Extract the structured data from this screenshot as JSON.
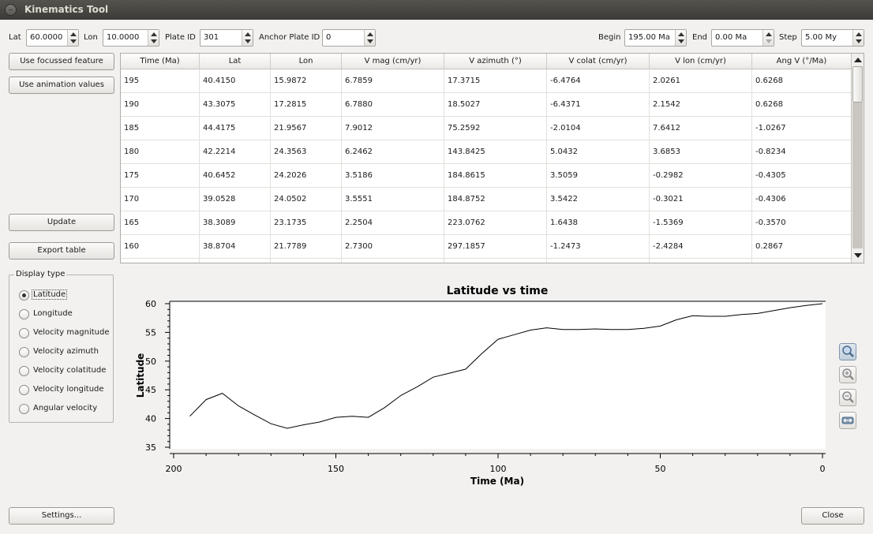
{
  "window": {
    "title": "Kinematics Tool"
  },
  "params": {
    "lat_label": "Lat",
    "lat_value": "60.0000",
    "lon_label": "Lon",
    "lon_value": "10.0000",
    "plate_label": "Plate ID",
    "plate_value": "301",
    "anchor_label": "Anchor Plate ID",
    "anchor_value": "0",
    "begin_label": "Begin",
    "begin_value": "195.00 Ma",
    "end_label": "End",
    "end_value": "0.00 Ma",
    "step_label": "Step",
    "step_value": "5.00 My"
  },
  "buttons": {
    "use_focussed": "Use focussed feature",
    "use_animation": "Use animation values",
    "update": "Update",
    "export": "Export table",
    "settings": "Settings...",
    "close": "Close"
  },
  "table": {
    "columns": [
      "Time (Ma)",
      "Lat",
      "Lon",
      "V mag (cm/yr)",
      "V azimuth (°)",
      "V colat (cm/yr)",
      "V lon (cm/yr)",
      "Ang V (°/Ma)"
    ],
    "rows": [
      [
        "195",
        "40.4150",
        "15.9872",
        "6.7859",
        "17.3715",
        "-6.4764",
        "2.0261",
        "0.6268"
      ],
      [
        "190",
        "43.3075",
        "17.2815",
        "6.7880",
        "18.5027",
        "-6.4371",
        "2.1542",
        "0.6268"
      ],
      [
        "185",
        "44.4175",
        "21.9567",
        "7.9012",
        "75.2592",
        "-2.0104",
        "7.6412",
        "-1.0267"
      ],
      [
        "180",
        "42.2214",
        "24.3563",
        "6.2462",
        "143.8425",
        "5.0432",
        "3.6853",
        "-0.8234"
      ],
      [
        "175",
        "40.6452",
        "24.2026",
        "3.5186",
        "184.8615",
        "3.5059",
        "-0.2982",
        "-0.4305"
      ],
      [
        "170",
        "39.0528",
        "24.0502",
        "3.5551",
        "184.8752",
        "3.5422",
        "-0.3021",
        "-0.4306"
      ],
      [
        "165",
        "38.3089",
        "23.1735",
        "2.2504",
        "223.0762",
        "1.6438",
        "-1.5369",
        "-0.3570"
      ],
      [
        "160",
        "38.8704",
        "21.7789",
        "2.7300",
        "297.1857",
        "-1.2473",
        "-2.4284",
        "0.2867"
      ]
    ]
  },
  "display_type": {
    "title": "Display type",
    "options": [
      "Latitude",
      "Longitude",
      "Velocity magnitude",
      "Velocity azimuth",
      "Velocity colatitude",
      "Velocity longitude",
      "Angular velocity"
    ],
    "selected": "Latitude"
  },
  "tools": [
    "zoom-select-icon",
    "zoom-in-icon",
    "zoom-out-icon",
    "zoom-fit-icon"
  ],
  "chart_data": {
    "type": "line",
    "title": "Latitude vs time",
    "xlabel": "Time (Ma)",
    "ylabel": "Latitude",
    "xlim": [
      200,
      0
    ],
    "ylim": [
      35,
      60
    ],
    "xticks": [
      "200",
      "150",
      "100",
      "50",
      "0"
    ],
    "yticks": [
      "35",
      "40",
      "45",
      "50",
      "55",
      "60"
    ],
    "line_color": "#000000",
    "x": [
      195,
      190,
      185,
      180,
      175,
      170,
      165,
      160,
      155,
      150,
      145,
      140,
      135,
      130,
      125,
      120,
      115,
      110,
      105,
      100,
      95,
      90,
      85,
      80,
      75,
      70,
      65,
      60,
      55,
      50,
      45,
      40,
      35,
      30,
      25,
      20,
      15,
      10,
      5,
      0
    ],
    "y": [
      40.4,
      43.3,
      44.4,
      42.2,
      40.6,
      39.1,
      38.3,
      38.9,
      39.4,
      40.2,
      40.4,
      40.2,
      41.9,
      44.0,
      45.5,
      47.2,
      47.9,
      48.6,
      51.3,
      53.8,
      54.6,
      55.4,
      55.8,
      55.5,
      55.5,
      55.6,
      55.5,
      55.5,
      55.7,
      56.1,
      57.2,
      57.9,
      57.8,
      57.8,
      58.1,
      58.3,
      58.8,
      59.3,
      59.7,
      60.0
    ]
  }
}
